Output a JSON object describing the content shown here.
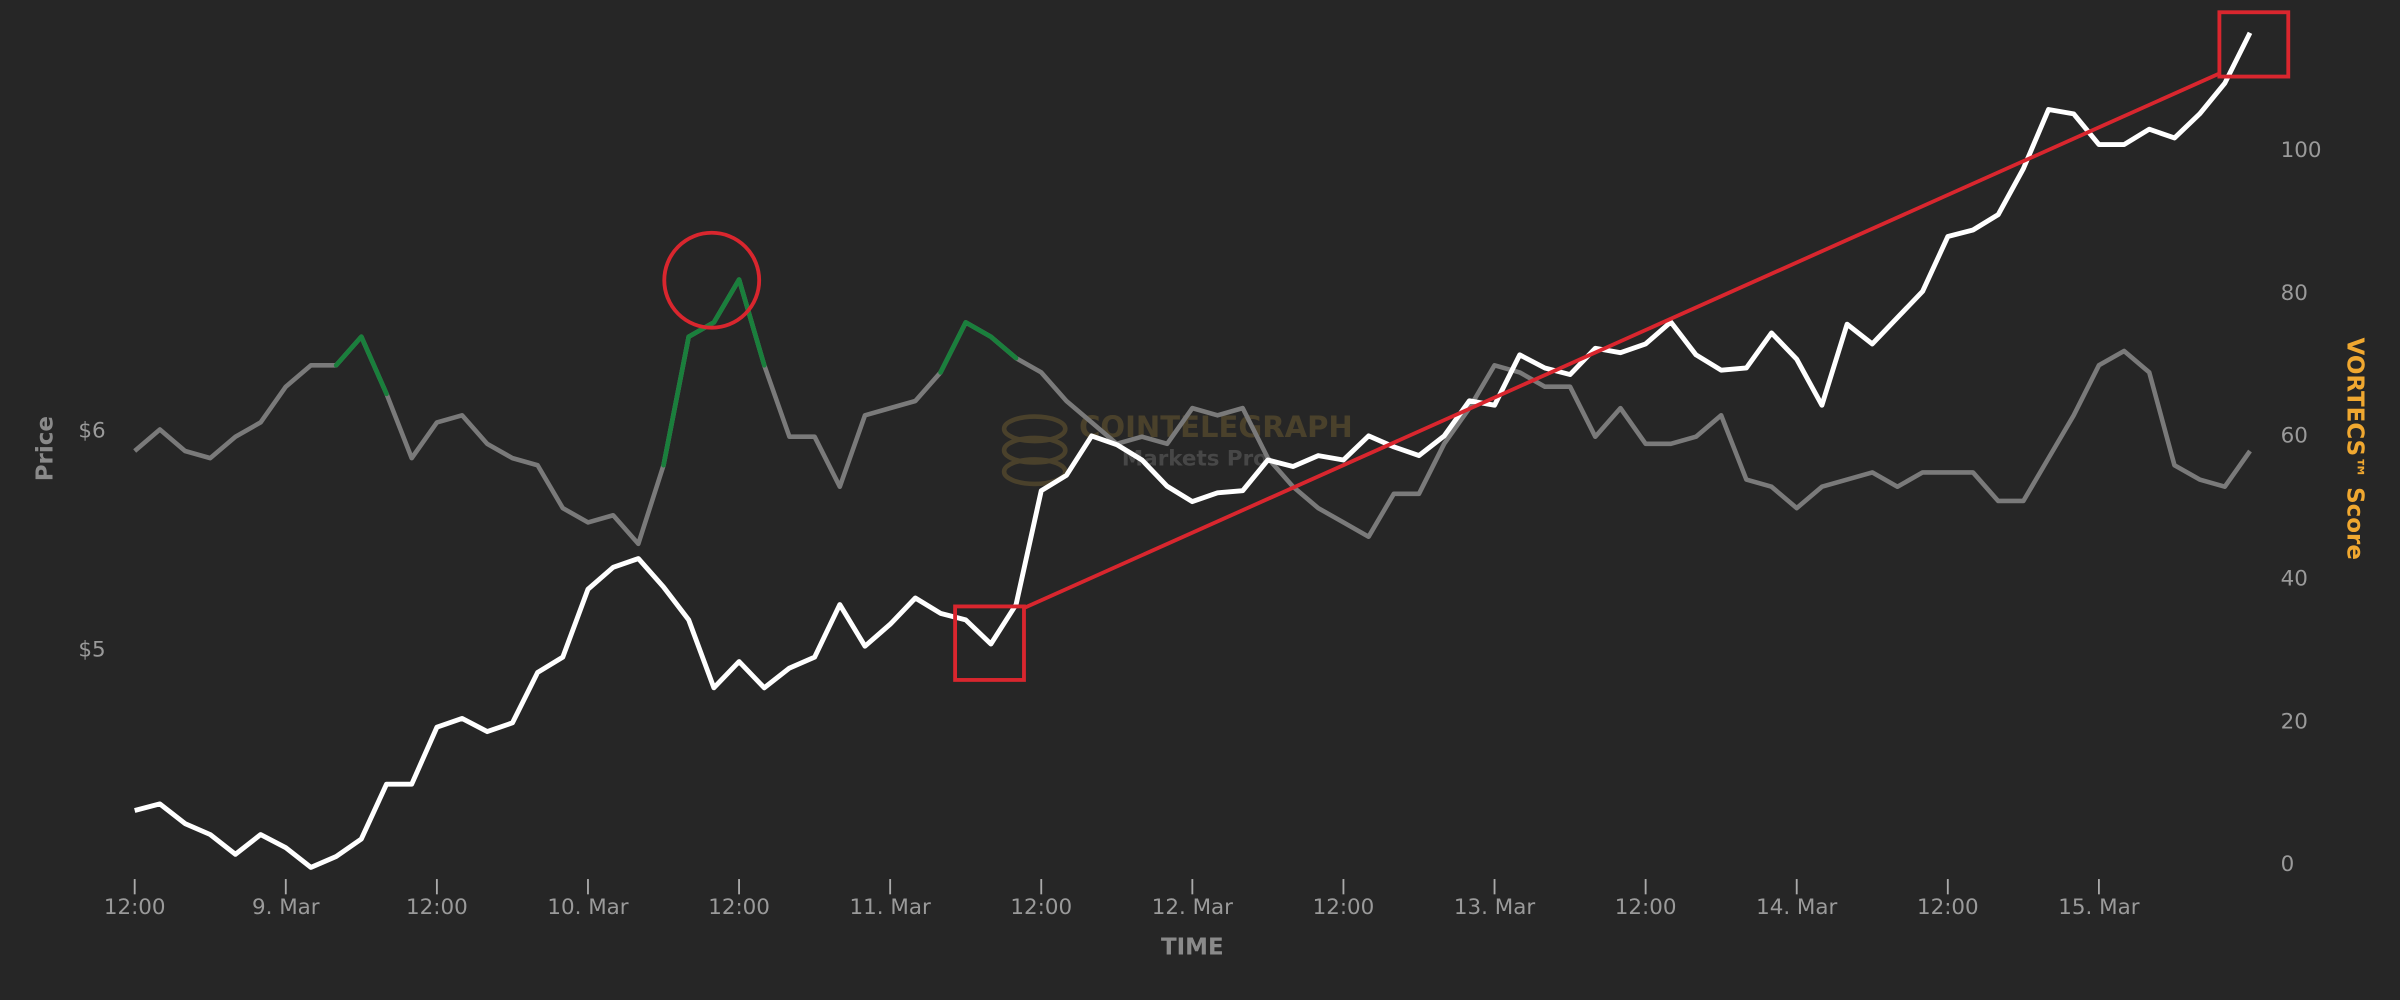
{
  "chart_data": {
    "type": "line",
    "x_label": "TIME",
    "y_label": "Price",
    "y2_label": "VORTECS™ Score",
    "watermark": [
      "COINTELEGRAPH",
      "Markets Pro"
    ],
    "xlim": [
      0,
      168
    ],
    "xticks": [
      {
        "value": 0,
        "label": "12:00"
      },
      {
        "value": 12,
        "label": "9. Mar"
      },
      {
        "value": 24,
        "label": "12:00"
      },
      {
        "value": 36,
        "label": "10. Mar"
      },
      {
        "value": 48,
        "label": "12:00"
      },
      {
        "value": 60,
        "label": "11. Mar"
      },
      {
        "value": 72,
        "label": "12:00"
      },
      {
        "value": 84,
        "label": "12. Mar"
      },
      {
        "value": 96,
        "label": "12:00"
      },
      {
        "value": 108,
        "label": "13. Mar"
      },
      {
        "value": 120,
        "label": "12:00"
      },
      {
        "value": 132,
        "label": "14. Mar"
      },
      {
        "value": 144,
        "label": "12:00"
      },
      {
        "value": 156,
        "label": "15. Mar"
      }
    ],
    "ylim": [
      4.02,
      7.9
    ],
    "yticks": [
      {
        "value": 5,
        "label": "$5"
      },
      {
        "value": 6,
        "label": "$6"
      }
    ],
    "y2lim": [
      0,
      119
    ],
    "y2ticks": [
      0,
      20,
      40,
      60,
      80,
      100
    ],
    "y2_label_color": "#f0a830",
    "x": [
      0,
      2,
      4,
      6,
      8,
      10,
      12,
      14,
      16,
      18,
      20,
      22,
      24,
      26,
      28,
      30,
      32,
      34,
      36,
      38,
      40,
      42,
      44,
      46,
      48,
      50,
      52,
      54,
      56,
      58,
      60,
      62,
      64,
      66,
      68,
      70,
      72,
      74,
      76,
      78,
      80,
      82,
      84,
      86,
      88,
      90,
      92,
      94,
      96,
      98,
      100,
      102,
      104,
      106,
      108,
      110,
      112,
      114,
      116,
      118,
      120,
      122,
      124,
      126,
      128,
      130,
      132,
      134,
      136,
      138,
      140,
      142,
      144,
      146,
      148,
      150,
      152,
      154,
      156,
      158,
      160,
      162,
      164,
      166,
      168
    ],
    "series": [
      {
        "color": "#7a7a7a",
        "axis": "y2",
        "highlight": {
          "color": "#1a7f3c",
          "above": 73
        },
        "values": [
          58,
          61,
          58,
          57,
          60,
          62,
          67,
          70,
          70,
          74,
          66,
          57,
          62,
          63,
          59,
          57,
          56,
          50,
          48,
          49,
          45,
          56,
          74,
          76,
          82,
          70,
          60,
          60,
          53,
          63,
          64,
          65,
          69,
          76,
          74,
          71,
          69,
          65,
          62,
          59,
          60,
          59,
          64,
          63,
          64,
          57,
          53,
          50,
          48,
          46,
          52,
          52,
          59,
          64,
          70,
          69,
          67,
          67,
          60,
          64,
          59,
          59,
          60,
          63,
          54,
          53,
          50,
          53,
          54,
          55,
          53,
          55,
          55,
          55,
          51,
          51,
          57,
          63,
          70,
          72,
          69,
          56,
          54,
          53,
          58
        ]
      },
      {
        "color": "#ffffff",
        "axis": "y",
        "values": [
          4.27,
          4.3,
          4.21,
          4.16,
          4.07,
          4.16,
          4.1,
          4.01,
          4.06,
          4.14,
          4.39,
          4.39,
          4.65,
          4.69,
          4.63,
          4.67,
          4.9,
          4.97,
          5.28,
          5.38,
          5.42,
          5.29,
          5.14,
          4.83,
          4.95,
          4.83,
          4.92,
          4.97,
          5.21,
          5.02,
          5.12,
          5.24,
          5.17,
          5.14,
          5.03,
          5.21,
          5.73,
          5.8,
          5.98,
          5.94,
          5.87,
          5.75,
          5.68,
          5.72,
          5.73,
          5.87,
          5.84,
          5.89,
          5.87,
          5.98,
          5.93,
          5.89,
          5.98,
          6.14,
          6.12,
          6.35,
          6.29,
          6.26,
          6.38,
          6.36,
          6.4,
          6.5,
          6.35,
          6.28,
          6.29,
          6.45,
          6.33,
          6.12,
          6.49,
          6.4,
          6.52,
          6.64,
          6.89,
          6.92,
          6.99,
          7.2,
          7.47,
          7.45,
          7.31,
          7.31,
          7.38,
          7.34,
          7.45,
          7.59,
          7.82
        ]
      }
    ]
  }
}
